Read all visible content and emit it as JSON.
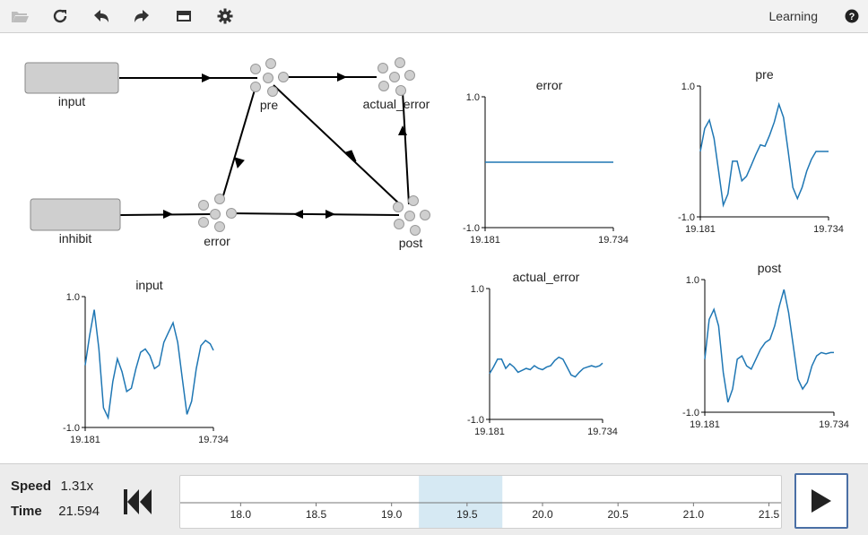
{
  "toolbar": {
    "title": "Learning",
    "icons": [
      "folder-open-icon",
      "refresh-icon",
      "undo-icon",
      "redo-icon",
      "minimap-icon",
      "settings-icon",
      "help-icon"
    ]
  },
  "network": {
    "nodes": {
      "input": "input",
      "inhibit": "inhibit",
      "pre": "pre",
      "actual_error": "actual_error",
      "error": "error",
      "post": "post"
    }
  },
  "plots": {
    "error": {
      "title": "error",
      "ymax": "1.0",
      "ymin": "-1.0",
      "xmin": "19.181",
      "xmax": "19.734"
    },
    "pre": {
      "title": "pre",
      "ymax": "1.0",
      "ymin": "-1.0",
      "xmin": "19.181",
      "xmax": "19.734"
    },
    "input": {
      "title": "input",
      "ymax": "1.0",
      "ymin": "-1.0",
      "xmin": "19.181",
      "xmax": "19.734"
    },
    "actual_error": {
      "title": "actual_error",
      "ymax": "1.0",
      "ymin": "-1.0",
      "xmin": "19.181",
      "xmax": "19.734"
    },
    "post": {
      "title": "post",
      "ymax": "1.0",
      "ymin": "-1.0",
      "xmin": "19.181",
      "xmax": "19.734"
    }
  },
  "chart_data": [
    {
      "type": "line",
      "title": "error",
      "x": [
        19.181,
        19.734
      ],
      "ylim": [
        -1.0,
        1.0
      ],
      "series": [
        {
          "values": [
            0.0,
            0.0
          ]
        }
      ]
    },
    {
      "type": "line",
      "title": "pre",
      "ylim": [
        -1.0,
        1.0
      ],
      "x": [
        19.181,
        19.2,
        19.22,
        19.24,
        19.26,
        19.28,
        19.3,
        19.32,
        19.34,
        19.36,
        19.38,
        19.4,
        19.42,
        19.44,
        19.46,
        19.48,
        19.5,
        19.52,
        19.54,
        19.56,
        19.58,
        19.6,
        19.62,
        19.64,
        19.66,
        19.68,
        19.7,
        19.72,
        19.734
      ],
      "series": [
        {
          "values": [
            0.0,
            0.35,
            0.48,
            0.2,
            -0.3,
            -0.82,
            -0.65,
            -0.15,
            -0.15,
            -0.45,
            -0.38,
            -0.22,
            -0.05,
            0.1,
            0.08,
            0.25,
            0.45,
            0.72,
            0.52,
            0.0,
            -0.55,
            -0.72,
            -0.55,
            -0.3,
            -0.12,
            0.0,
            0.0,
            0.0,
            0.0
          ]
        }
      ]
    },
    {
      "type": "line",
      "title": "input",
      "ylim": [
        -1.0,
        1.0
      ],
      "x": [
        19.181,
        19.2,
        19.22,
        19.24,
        19.26,
        19.28,
        19.3,
        19.32,
        19.34,
        19.36,
        19.38,
        19.4,
        19.42,
        19.44,
        19.46,
        19.48,
        19.5,
        19.52,
        19.54,
        19.56,
        19.58,
        19.6,
        19.62,
        19.64,
        19.66,
        19.68,
        19.7,
        19.72,
        19.734
      ],
      "series": [
        {
          "values": [
            -0.05,
            0.4,
            0.8,
            0.2,
            -0.7,
            -0.85,
            -0.3,
            0.05,
            -0.15,
            -0.45,
            -0.4,
            -0.1,
            0.15,
            0.2,
            0.1,
            -0.1,
            -0.05,
            0.3,
            0.45,
            0.6,
            0.3,
            -0.25,
            -0.8,
            -0.6,
            -0.1,
            0.25,
            0.33,
            0.28,
            0.18
          ]
        }
      ]
    },
    {
      "type": "line",
      "title": "actual_error",
      "ylim": [
        -1.0,
        1.0
      ],
      "x": [
        19.181,
        19.2,
        19.22,
        19.24,
        19.26,
        19.28,
        19.3,
        19.32,
        19.34,
        19.36,
        19.38,
        19.4,
        19.42,
        19.44,
        19.46,
        19.48,
        19.5,
        19.52,
        19.54,
        19.56,
        19.58,
        19.6,
        19.62,
        19.64,
        19.66,
        19.68,
        19.7,
        19.72,
        19.734
      ],
      "series": [
        {
          "values": [
            -0.3,
            -0.2,
            -0.08,
            -0.08,
            -0.22,
            -0.15,
            -0.2,
            -0.28,
            -0.25,
            -0.22,
            -0.24,
            -0.18,
            -0.22,
            -0.24,
            -0.2,
            -0.18,
            -0.1,
            -0.05,
            -0.08,
            -0.2,
            -0.32,
            -0.35,
            -0.28,
            -0.22,
            -0.2,
            -0.18,
            -0.2,
            -0.18,
            -0.14
          ]
        }
      ]
    },
    {
      "type": "line",
      "title": "post",
      "ylim": [
        -1.0,
        1.0
      ],
      "x": [
        19.181,
        19.2,
        19.22,
        19.24,
        19.26,
        19.28,
        19.3,
        19.32,
        19.34,
        19.36,
        19.38,
        19.4,
        19.42,
        19.44,
        19.46,
        19.48,
        19.5,
        19.52,
        19.54,
        19.56,
        19.58,
        19.6,
        19.62,
        19.64,
        19.66,
        19.68,
        19.7,
        19.72,
        19.734
      ],
      "series": [
        {
          "values": [
            -0.2,
            0.4,
            0.55,
            0.3,
            -0.4,
            -0.85,
            -0.65,
            -0.2,
            -0.15,
            -0.3,
            -0.35,
            -0.2,
            -0.05,
            0.05,
            0.1,
            0.3,
            0.6,
            0.85,
            0.5,
            0.0,
            -0.5,
            -0.65,
            -0.55,
            -0.3,
            -0.15,
            -0.1,
            -0.12,
            -0.1,
            -0.1
          ]
        }
      ]
    }
  ],
  "controls": {
    "speed_label": "Speed",
    "speed_value": "1.31x",
    "time_label": "Time",
    "time_value": "21.594",
    "ticks": [
      "18.0",
      "18.5",
      "19.0",
      "19.5",
      "20.0",
      "20.5",
      "21.0",
      "21.5"
    ],
    "window": {
      "start": 19.181,
      "end": 19.734
    }
  }
}
